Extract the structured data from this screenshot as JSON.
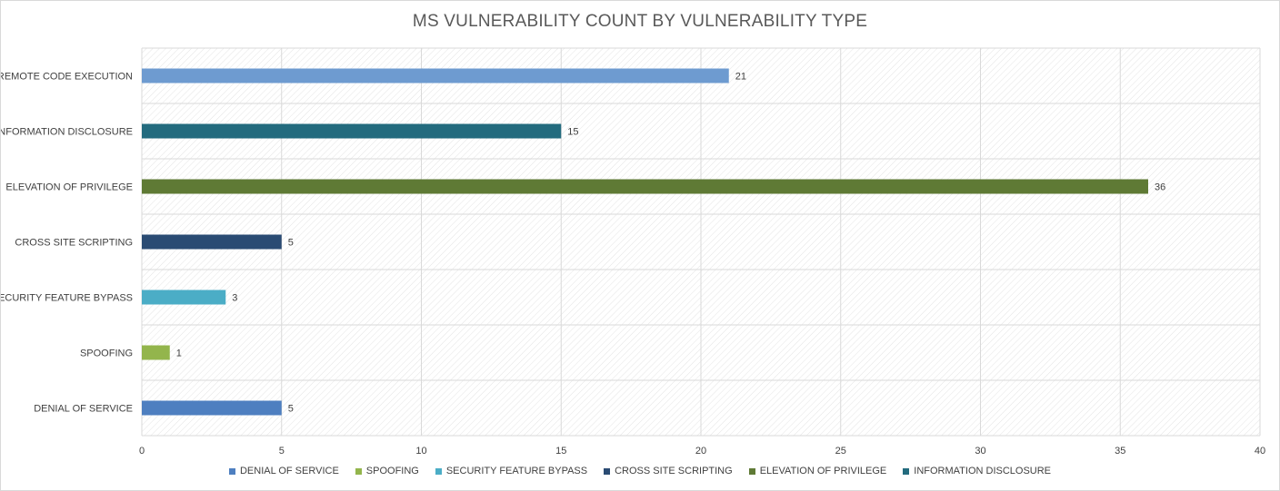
{
  "chart_data": {
    "type": "bar",
    "orientation": "horizontal",
    "title": "MS VULNERABILITY COUNT BY VULNERABILITY TYPE",
    "categories": [
      "REMOTE CODE EXECUTION",
      "INFORMATION DISCLOSURE",
      "ELEVATION OF PRIVILEGE",
      "CROSS SITE SCRIPTING",
      "SECURITY FEATURE BYPASS",
      "SPOOFING",
      "DENIAL OF SERVICE"
    ],
    "values": [
      21,
      15,
      36,
      5,
      3,
      1,
      5
    ],
    "colors": [
      "#6e9bd0",
      "#236b7e",
      "#5f7a35",
      "#2a4b73",
      "#4badc6",
      "#93b54c",
      "#4e7fc0"
    ],
    "xlim": [
      0,
      40
    ],
    "x_ticks": [
      0,
      5,
      10,
      15,
      20,
      25,
      30,
      35,
      40
    ],
    "grid": true,
    "legend_position": "bottom",
    "legend": [
      {
        "label": "DENIAL OF SERVICE",
        "color": "#4e7fc0"
      },
      {
        "label": "SPOOFING",
        "color": "#93b54c"
      },
      {
        "label": "SECURITY FEATURE BYPASS",
        "color": "#4badc6"
      },
      {
        "label": "CROSS SITE SCRIPTING",
        "color": "#2a4b73"
      },
      {
        "label": "ELEVATION OF PRIVILEGE",
        "color": "#5f7a35"
      },
      {
        "label": "INFORMATION DISCLOSURE",
        "color": "#236b7e"
      }
    ]
  }
}
